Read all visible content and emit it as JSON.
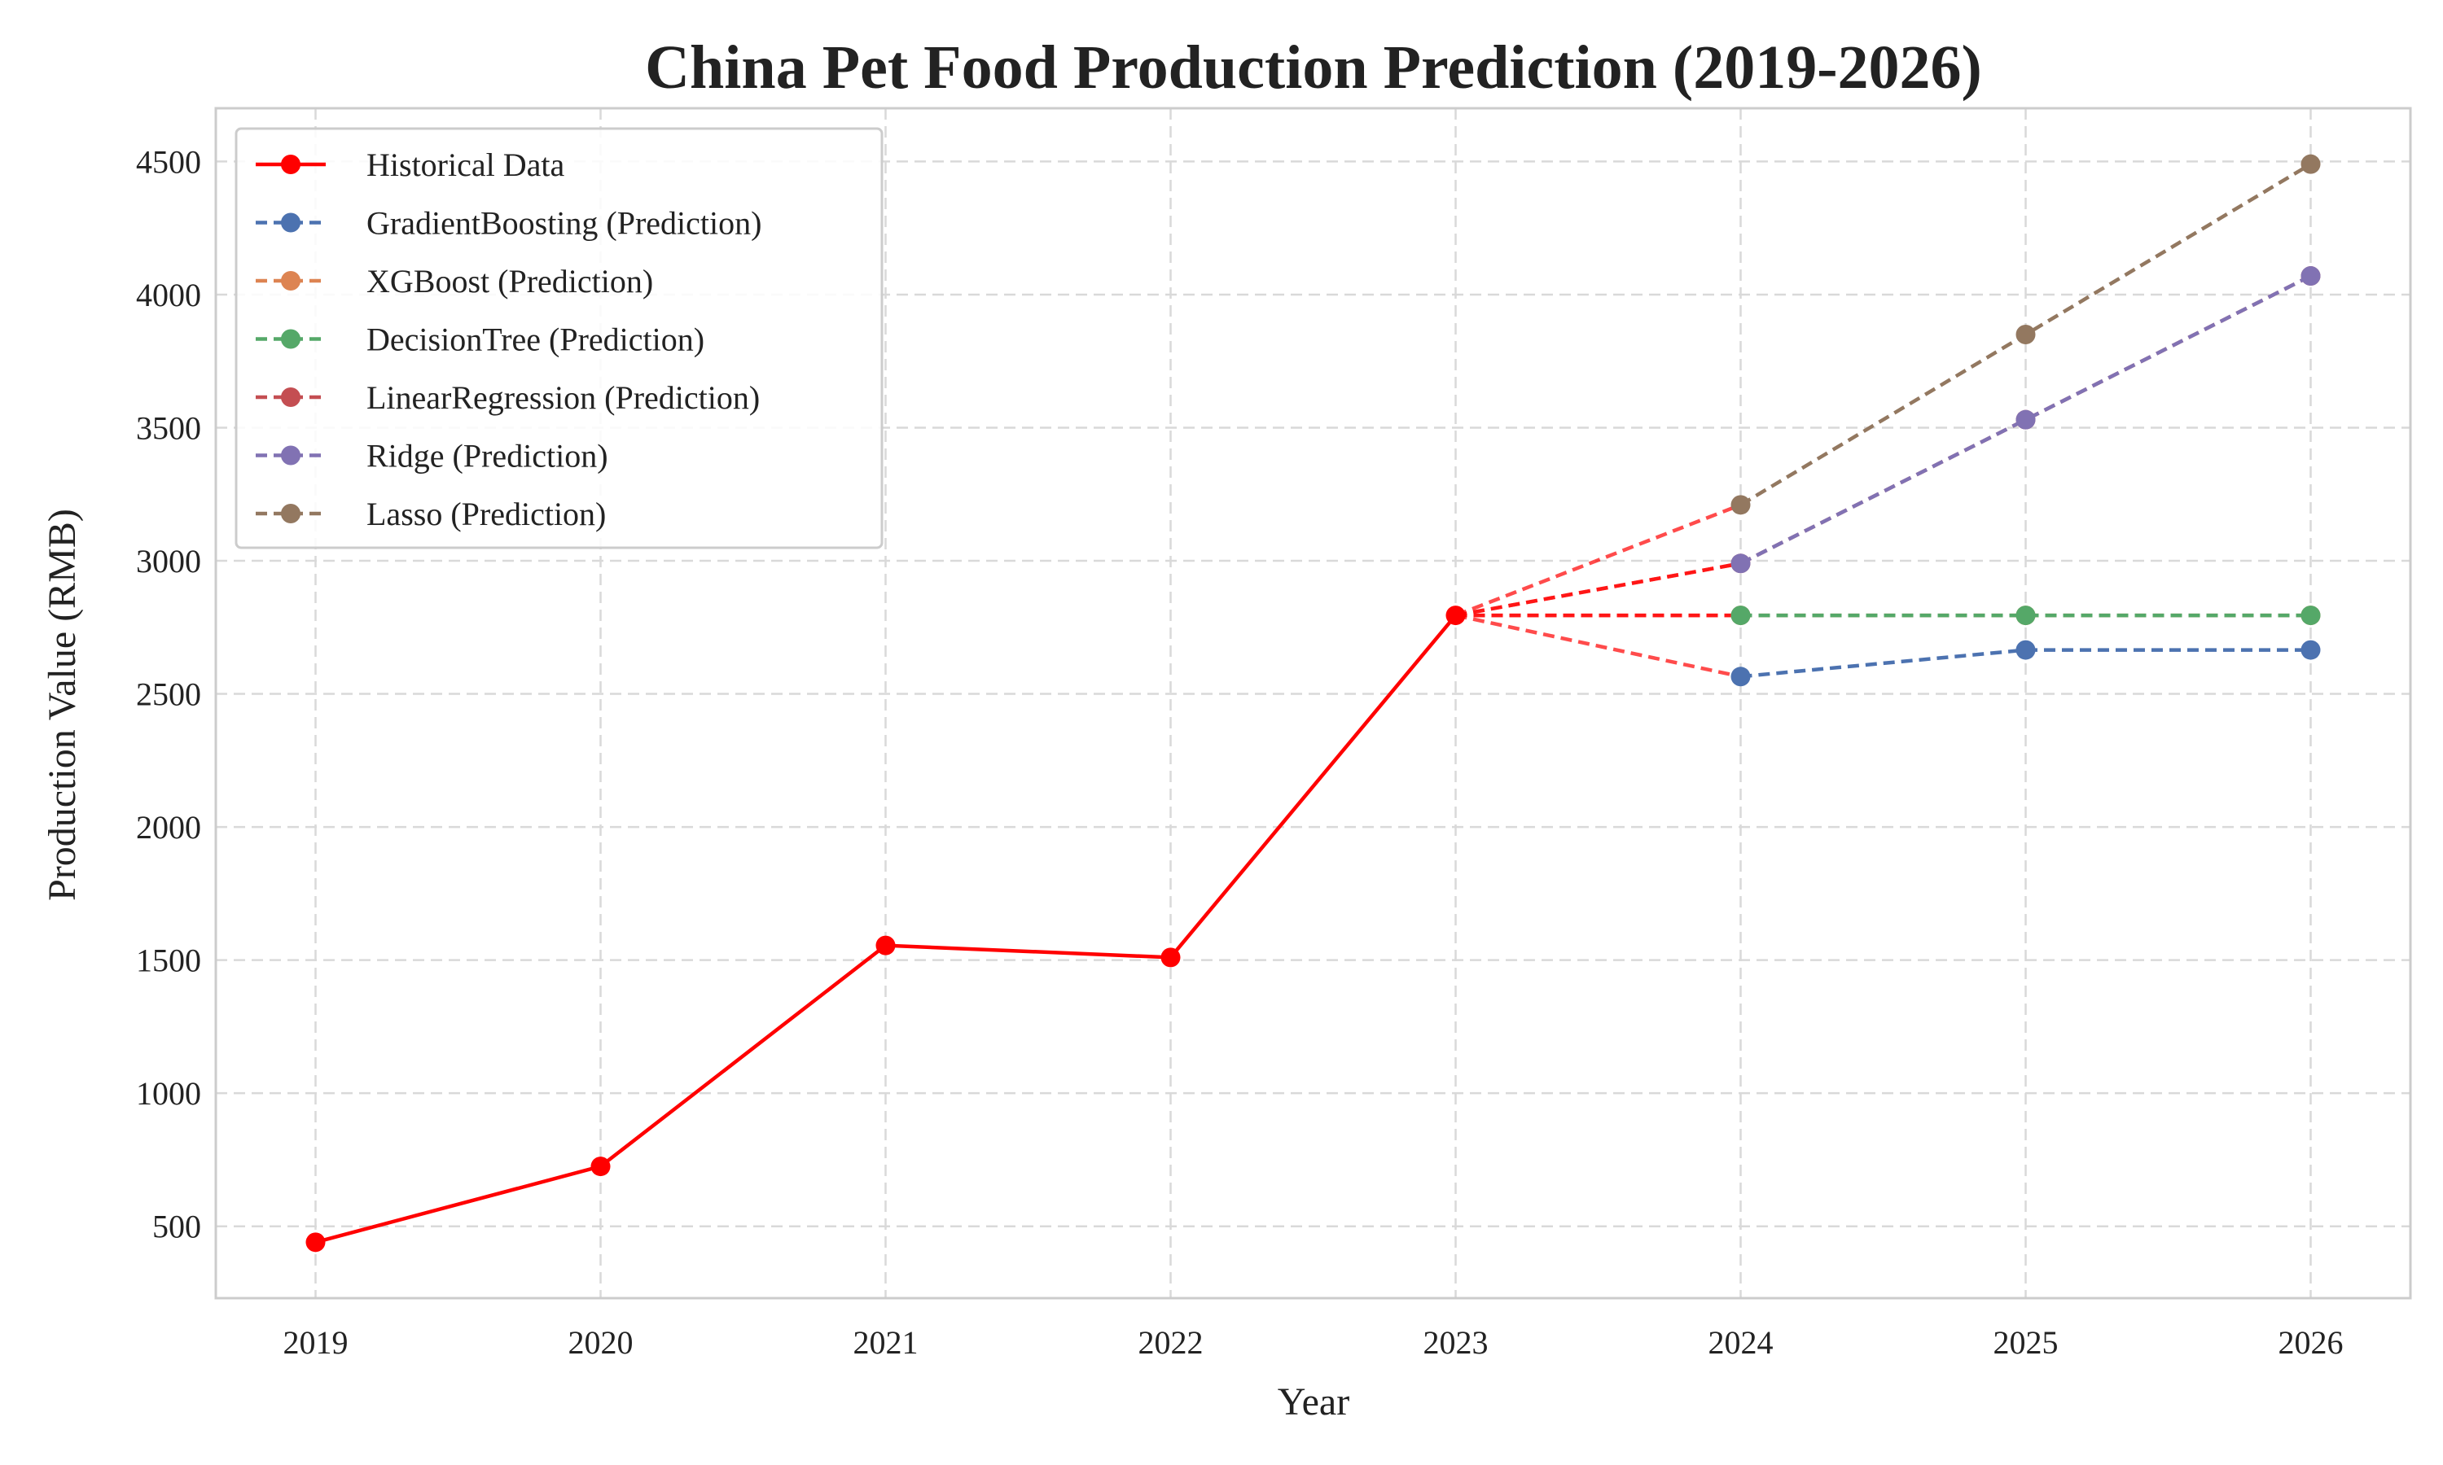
{
  "chart_data": {
    "type": "line",
    "title": "China Pet Food Production Prediction (2019-2026)",
    "xlabel": "Year",
    "ylabel": "Production Value (RMB)",
    "x_ticks": [
      2019,
      2020,
      2021,
      2022,
      2023,
      2024,
      2025,
      2026
    ],
    "y_ticks": [
      500,
      1000,
      1500,
      2000,
      2500,
      3000,
      3500,
      4000,
      4500
    ],
    "xlim": [
      2018.65,
      2026.35
    ],
    "ylim": [
      230,
      4700
    ],
    "grid": true,
    "legend_position": "top-left",
    "historical": {
      "name": "Historical Data",
      "color": "#ff0000",
      "x": [
        2019,
        2020,
        2021,
        2022,
        2023
      ],
      "y": [
        440,
        725,
        1555,
        1510,
        2795
      ]
    },
    "series": [
      {
        "name": "GradientBoosting (Prediction)",
        "color": "#4c72b0",
        "x": [
          2024,
          2025,
          2026
        ],
        "y": [
          2565,
          2665,
          2665
        ]
      },
      {
        "name": "XGBoost (Prediction)",
        "color": "#dd8452",
        "x": [
          2024,
          2025,
          2026
        ],
        "y": [
          2795,
          2795,
          2795
        ]
      },
      {
        "name": "DecisionTree (Prediction)",
        "color": "#55a868",
        "x": [
          2024,
          2025,
          2026
        ],
        "y": [
          2795,
          2795,
          2795
        ]
      },
      {
        "name": "LinearRegression (Prediction)",
        "color": "#c44e52",
        "x": [
          2024,
          2025,
          2026
        ],
        "y": [
          2990,
          3530,
          4070
        ]
      },
      {
        "name": "Ridge (Prediction)",
        "color": "#8172b3",
        "x": [
          2024,
          2025,
          2026
        ],
        "y": [
          2990,
          3530,
          4070
        ]
      },
      {
        "name": "Lasso (Prediction)",
        "color": "#937860",
        "x": [
          2024,
          2025,
          2026
        ],
        "y": [
          3210,
          3850,
          4490
        ]
      }
    ]
  }
}
